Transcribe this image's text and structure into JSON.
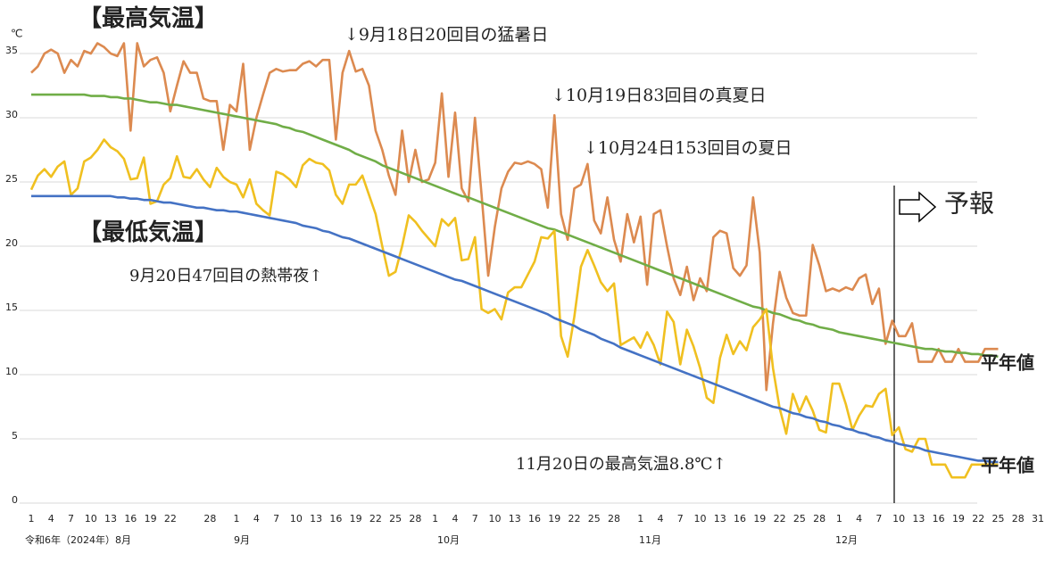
{
  "chart_data": {
    "type": "line",
    "unit": "℃",
    "categories": [
      "1",
      null,
      null,
      "4",
      null,
      null,
      "7",
      null,
      null,
      "10",
      null,
      null,
      "13",
      null,
      null,
      "16",
      null,
      null,
      "19",
      null,
      null,
      "22",
      null,
      null,
      null,
      null,
      null,
      "28",
      null,
      null,
      null,
      "1",
      null,
      null,
      "4",
      null,
      null,
      "7",
      null,
      null,
      "10",
      null,
      null,
      "13",
      null,
      null,
      "16",
      null,
      null,
      "19",
      null,
      null,
      "22",
      null,
      null,
      "25",
      null,
      null,
      "28",
      null,
      null,
      "1",
      null,
      null,
      "4",
      null,
      null,
      "7",
      null,
      null,
      "10",
      null,
      null,
      "13",
      null,
      null,
      "16",
      null,
      null,
      "19",
      null,
      null,
      "22",
      null,
      null,
      "25",
      null,
      null,
      "28",
      null,
      null,
      null,
      "1",
      null,
      null,
      "4",
      null,
      null,
      "7",
      null,
      null,
      "10",
      null,
      null,
      "13",
      null,
      null,
      "16",
      null,
      null,
      "19",
      null,
      null,
      "22",
      null,
      null,
      "25",
      null,
      null,
      "28",
      null,
      null,
      "1",
      null,
      null,
      "4",
      null,
      null,
      "7",
      null,
      null,
      "10",
      null,
      null,
      "13",
      null,
      null,
      "16",
      null,
      null,
      "19",
      null,
      null,
      "22",
      null,
      null,
      "25",
      null,
      null,
      "28",
      null,
      null,
      "31"
    ],
    "month_labels": [
      "令和6年（2024年）8月",
      "9月",
      "10月",
      "11月",
      "12月"
    ],
    "series": [
      {
        "color": "#dc8a50",
        "values": [
          33.5,
          34,
          35,
          35.3,
          35,
          33.5,
          34.5,
          34,
          35.2,
          35,
          35.8,
          35.5,
          35,
          34.8,
          35.8,
          29,
          35.8,
          34,
          34.5,
          34.7,
          33.5,
          30.5,
          32.5,
          34.4,
          33.5,
          33.5,
          31.5,
          31.3,
          31.3,
          27.5,
          31,
          30.5,
          34.2,
          27.5,
          30,
          31.8,
          33.5,
          33.8,
          33.6,
          33.7,
          33.7,
          34.2,
          34.4,
          34,
          34.5,
          34.5,
          28.3,
          33.5,
          35.2,
          33.6,
          33.8,
          32.5,
          29,
          27.5,
          25.5,
          24,
          29,
          25,
          27.5,
          25,
          25.2,
          26.5,
          31.9,
          25.4,
          30.4,
          24.5,
          23.5,
          30,
          24,
          17.7,
          21.5,
          24.5,
          25.8,
          26.5,
          26.4,
          26.6,
          26.4,
          26,
          23,
          30.2,
          22.5,
          20.5,
          24.5,
          24.8,
          26.4,
          22,
          21,
          23.8,
          20.5,
          18.8,
          22.5,
          20.3,
          22.3,
          17,
          22.5,
          22.8,
          20,
          17.5,
          16.2,
          18.4,
          15.8,
          17.5,
          16.5,
          20.7,
          21.2,
          21,
          18.3,
          17.7,
          18.5,
          23.8,
          19.5,
          8.8,
          14,
          18,
          16,
          14.8,
          14.6,
          14.6,
          20.1,
          18.5,
          16.5,
          16.7,
          16.5,
          16.8,
          16.6,
          17.5,
          17.8,
          15.5,
          16.7,
          12.4,
          14.2,
          13,
          13,
          14,
          11,
          11,
          11,
          12,
          11,
          11,
          12,
          11,
          11,
          11,
          12,
          12,
          12,
          null,
          null,
          null,
          null,
          null,
          null
        ]
      },
      {
        "color": "#70ad47",
        "values": [
          31.8,
          31.8,
          31.8,
          31.8,
          31.8,
          31.8,
          31.8,
          31.8,
          31.8,
          31.7,
          31.7,
          31.7,
          31.6,
          31.6,
          31.5,
          31.5,
          31.4,
          31.3,
          31.2,
          31.2,
          31.1,
          31,
          31,
          30.9,
          30.8,
          30.7,
          30.6,
          30.5,
          30.4,
          30.3,
          30.2,
          30.1,
          30,
          29.9,
          29.8,
          29.7,
          29.6,
          29.5,
          29.3,
          29.2,
          29,
          28.9,
          28.7,
          28.5,
          28.3,
          28.1,
          27.9,
          27.7,
          27.5,
          27.2,
          27,
          26.8,
          26.6,
          26.3,
          26.1,
          25.9,
          25.7,
          25.5,
          25.3,
          25.1,
          24.9,
          24.7,
          24.5,
          24.3,
          24.1,
          23.9,
          23.8,
          23.6,
          23.4,
          23.2,
          23,
          22.8,
          22.6,
          22.4,
          22.2,
          22,
          21.8,
          21.6,
          21.4,
          21.3,
          21.1,
          20.9,
          20.7,
          20.5,
          20.3,
          20.1,
          19.9,
          19.7,
          19.5,
          19.3,
          19.1,
          18.9,
          18.7,
          18.5,
          18.3,
          18.1,
          17.9,
          17.7,
          17.5,
          17.3,
          17.1,
          16.9,
          16.7,
          16.5,
          16.3,
          16.1,
          15.9,
          15.7,
          15.5,
          15.3,
          15.2,
          15,
          14.8,
          14.7,
          14.5,
          14.3,
          14.2,
          14,
          13.9,
          13.7,
          13.6,
          13.5,
          13.3,
          13.2,
          13.1,
          13,
          12.9,
          12.8,
          12.7,
          12.6,
          12.5,
          12.4,
          12.3,
          12.2,
          12.1,
          12,
          12,
          11.9,
          11.8,
          11.8,
          11.7,
          11.7,
          11.6,
          11.6,
          11.5,
          11.5,
          11.4,
          null,
          null,
          null,
          null,
          null,
          null
        ]
      },
      {
        "color": "#f0c020",
        "values": [
          24.4,
          25.5,
          26,
          25.4,
          26.2,
          26.6,
          24,
          24.5,
          26.6,
          26.9,
          27.5,
          28.3,
          27.7,
          27.4,
          26.8,
          25.2,
          25.3,
          26.9,
          23.3,
          23.5,
          24.8,
          25.3,
          27,
          25.4,
          25.3,
          26,
          25.2,
          24.6,
          26.1,
          25.4,
          25,
          24.8,
          23.8,
          25.2,
          23.3,
          22.8,
          22.4,
          25.8,
          25.6,
          25.2,
          24.6,
          26.3,
          26.8,
          26.5,
          26.4,
          25.9,
          24,
          23.3,
          24.8,
          24.8,
          25.5,
          24,
          22.5,
          20,
          17.7,
          18,
          20,
          22.4,
          21.9,
          21.2,
          20.6,
          20,
          22.1,
          21.6,
          22.2,
          18.9,
          19,
          20.7,
          15.1,
          14.8,
          15.1,
          14.3,
          16.4,
          16.8,
          16.8,
          17.8,
          18.8,
          20.7,
          20.6,
          21.2,
          13,
          11.4,
          14.5,
          18.4,
          19.7,
          18.5,
          17.2,
          16.5,
          17.1,
          12.3,
          12.6,
          12.9,
          12.1,
          13.3,
          12.3,
          10.8,
          14.9,
          14.1,
          10.8,
          13.5,
          12.2,
          10.5,
          8.2,
          7.8,
          11.3,
          13.1,
          11.6,
          12.6,
          11.9,
          13.7,
          14.3,
          15.1,
          10.5,
          7.4,
          5.4,
          8.5,
          7.1,
          8.3,
          7.2,
          5.7,
          5.5,
          9.3,
          9.3,
          7.7,
          5.7,
          6.8,
          7.6,
          7.5,
          8.5,
          8.9,
          5.3,
          5.9,
          4.2,
          4,
          5,
          5,
          3,
          3,
          3,
          2,
          2,
          2,
          3,
          3,
          3,
          3,
          3,
          null,
          null,
          null,
          null,
          null,
          null
        ]
      },
      {
        "color": "#4472c4",
        "values": [
          23.9,
          23.9,
          23.9,
          23.9,
          23.9,
          23.9,
          23.9,
          23.9,
          23.9,
          23.9,
          23.9,
          23.9,
          23.9,
          23.8,
          23.8,
          23.7,
          23.7,
          23.6,
          23.6,
          23.5,
          23.4,
          23.4,
          23.3,
          23.2,
          23.1,
          23,
          23,
          22.9,
          22.8,
          22.8,
          22.7,
          22.7,
          22.6,
          22.5,
          22.4,
          22.3,
          22.2,
          22.1,
          22,
          21.9,
          21.8,
          21.6,
          21.5,
          21.4,
          21.2,
          21.1,
          20.9,
          20.7,
          20.6,
          20.4,
          20.2,
          20,
          19.8,
          19.6,
          19.4,
          19.2,
          19,
          18.8,
          18.6,
          18.4,
          18.2,
          18,
          17.8,
          17.6,
          17.4,
          17.3,
          17.1,
          16.9,
          16.7,
          16.5,
          16.3,
          16.1,
          15.9,
          15.7,
          15.5,
          15.3,
          15.1,
          14.9,
          14.7,
          14.4,
          14.2,
          14,
          13.8,
          13.5,
          13.3,
          13.1,
          12.8,
          12.6,
          12.4,
          12.1,
          11.9,
          11.7,
          11.5,
          11.3,
          11.1,
          10.9,
          10.7,
          10.5,
          10.3,
          10.1,
          9.9,
          9.7,
          9.5,
          9.3,
          9.1,
          8.9,
          8.7,
          8.5,
          8.3,
          8.1,
          7.9,
          7.7,
          7.5,
          7.4,
          7.2,
          7,
          6.9,
          6.7,
          6.6,
          6.4,
          6.3,
          6.1,
          6,
          5.8,
          5.7,
          5.5,
          5.4,
          5.2,
          5.1,
          4.9,
          4.8,
          4.6,
          4.5,
          4.4,
          4.3,
          4.1,
          4,
          3.9,
          3.8,
          3.7,
          3.6,
          3.5,
          3.4,
          3.3,
          3.3,
          3.2,
          3.2,
          null,
          null,
          null,
          null,
          null,
          null
        ]
      }
    ],
    "ylim": [
      0,
      35
    ],
    "yticks": [
      0,
      5,
      10,
      15,
      20,
      25,
      30,
      35
    ],
    "grid": true,
    "annotations": [
      {
        "text": "【最高気温】"
      },
      {
        "text": "【最低気温】"
      },
      {
        "text": "↓9月18日20回目の猛暑日"
      },
      {
        "text": "↓10月19日83回目の真夏日"
      },
      {
        "text": "↓10月24日153回目の夏日"
      },
      {
        "text": "9月20日47回目の熱帯夜↑"
      },
      {
        "text": "11月20日の最高気温8.8℃↑"
      },
      {
        "text": "予報"
      },
      {
        "text": "平年値"
      },
      {
        "text": "平年値"
      }
    ]
  }
}
